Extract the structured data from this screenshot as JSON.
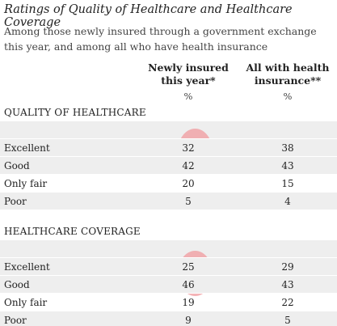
{
  "title": "Ratings of Quality of Healthcare and Healthcare Coverage",
  "subtitle": "Among those newly insured through a government exchange this year, and among all who have health insurance",
  "columns": {
    "col1": "Newly insured this year*",
    "col2": "All with health insurance**",
    "unit1": "%",
    "unit2": "%"
  },
  "highlight_color": "#f09a9e",
  "sections": [
    {
      "title": "QUALITY OF HEALTHCARE",
      "rows": [
        {
          "label": "Excellent",
          "newly": "32",
          "all": "38"
        },
        {
          "label": "Good",
          "newly": "42",
          "all": "43"
        },
        {
          "label": "Only fair",
          "newly": "20",
          "all": "15"
        },
        {
          "label": "Poor",
          "newly": "5",
          "all": "4"
        }
      ]
    },
    {
      "title": "HEALTHCARE COVERAGE",
      "rows": [
        {
          "label": "Excellent",
          "newly": "25",
          "all": "29"
        },
        {
          "label": "Good",
          "newly": "46",
          "all": "43"
        },
        {
          "label": "Only fair",
          "newly": "19",
          "all": "22"
        },
        {
          "label": "Poor",
          "newly": "9",
          "all": "5"
        }
      ]
    }
  ]
}
